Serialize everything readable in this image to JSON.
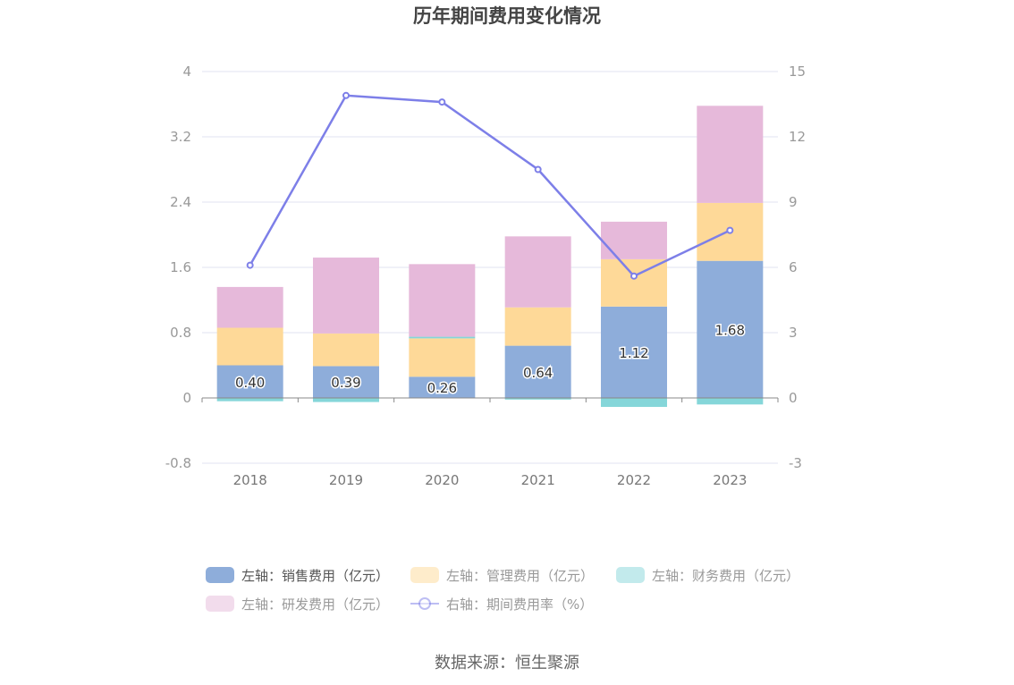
{
  "chart_data": {
    "type": "bar",
    "title": "历年期间费用变化情况",
    "categories": [
      "2018",
      "2019",
      "2020",
      "2021",
      "2022",
      "2023"
    ],
    "y_left": {
      "ticks": [
        "4",
        "3.2",
        "2.4",
        "1.6",
        "0.8",
        "0",
        "-0.8"
      ],
      "min": -0.8,
      "max": 4
    },
    "y_right": {
      "ticks": [
        "15",
        "12",
        "9",
        "6",
        "3",
        "0",
        "-3"
      ],
      "min": -3,
      "max": 15
    },
    "stacked": true,
    "series": [
      {
        "name": "左轴：销售费用（亿元）",
        "axis": "left",
        "type": "bar",
        "color": "#8eadda",
        "values": [
          0.4,
          0.39,
          0.26,
          0.64,
          1.12,
          1.68
        ],
        "labels": [
          "0.40",
          "0.39",
          "0.26",
          "0.64",
          "1.12",
          "1.68"
        ]
      },
      {
        "name": "左轴：管理费用（亿元）",
        "axis": "left",
        "type": "bar",
        "color": "#fed998",
        "values": [
          0.46,
          0.4,
          0.47,
          0.47,
          0.58,
          0.71
        ]
      },
      {
        "name": "左轴：财务费用（亿元）",
        "axis": "left",
        "type": "bar",
        "color": "#85d6d9",
        "values": [
          -0.04,
          -0.05,
          0.02,
          -0.02,
          -0.11,
          -0.08
        ]
      },
      {
        "name": "左轴：研发费用（亿元）",
        "axis": "left",
        "type": "bar",
        "color": "#e6b9da",
        "values": [
          0.5,
          0.93,
          0.89,
          0.87,
          0.46,
          1.19
        ]
      },
      {
        "name": "右轴：期间费用率（%）",
        "axis": "right",
        "type": "line",
        "color": "#7d7fe8",
        "values": [
          6.1,
          13.9,
          13.6,
          10.5,
          5.6,
          7.7
        ]
      }
    ],
    "legend_position": "bottom",
    "grid": true
  },
  "source": "数据来源：恒生聚源"
}
